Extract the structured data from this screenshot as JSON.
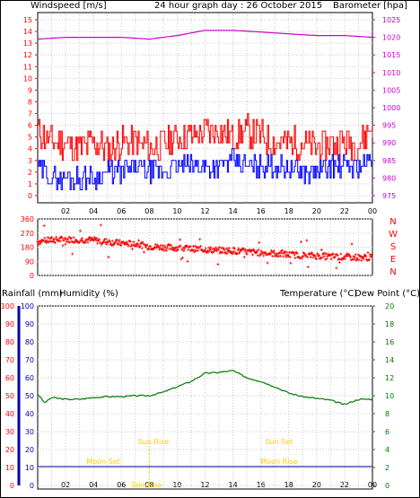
{
  "header": {
    "wind_label": "Windspeed [m/s]",
    "title": "24 hour graph day : 26 October 2015",
    "baro_label": "Barometer [hpa]"
  },
  "colors": {
    "gust": "#ff0000",
    "wind": "#0000ff",
    "baro": "#cc00cc",
    "dir": "#ff0000",
    "temp": "#007700",
    "rain": "#ff0000",
    "humidity": "#0000aa",
    "dew": "#ff0000",
    "sun": "#ffcc00",
    "grid": "#c8c8c8"
  },
  "x_ticks": [
    "02",
    "04",
    "06",
    "08",
    "10",
    "12",
    "14",
    "16",
    "18",
    "20",
    "22",
    "00"
  ],
  "chart_data": [
    {
      "type": "line",
      "id": "wind_baro",
      "xlabel": "",
      "y_left": {
        "label": "Windspeed [m/s]",
        "range": [
          0,
          15
        ],
        "ticks": [
          0,
          1,
          2,
          3,
          4,
          5,
          6,
          7,
          8,
          9,
          10,
          11,
          12,
          13,
          14,
          15
        ]
      },
      "y_right": {
        "label": "Barometer [hpa]",
        "range": [
          970,
          1030
        ],
        "ticks": [
          975,
          980,
          985,
          990,
          995,
          1000,
          1005,
          1010,
          1015,
          1020,
          1025
        ]
      },
      "series": [
        {
          "axis": "left",
          "hours": [
            0,
            1,
            2,
            3,
            4,
            5,
            6,
            7,
            8,
            9,
            10,
            11,
            12,
            13,
            14,
            15,
            16,
            17,
            18,
            19,
            20,
            21,
            22,
            23,
            24
          ],
          "values": [
            5.5,
            4.5,
            4.5,
            4.0,
            4.5,
            4.0,
            4.5,
            4.5,
            4.0,
            4.5,
            5.0,
            5.0,
            5.5,
            5.5,
            5.0,
            5.5,
            5.0,
            4.5,
            4.5,
            4.5,
            4.0,
            4.5,
            4.5,
            4.5,
            6.0
          ]
        },
        {
          "axis": "left",
          "hours": [
            0,
            1,
            2,
            3,
            4,
            5,
            6,
            7,
            8,
            9,
            10,
            11,
            12,
            13,
            14,
            15,
            16,
            17,
            18,
            19,
            20,
            21,
            22,
            23,
            24
          ],
          "values": [
            2.5,
            1.5,
            1.5,
            1.5,
            1.5,
            2.0,
            2.0,
            2.5,
            2.0,
            2.0,
            2.5,
            2.5,
            2.5,
            2.5,
            3.0,
            2.5,
            2.5,
            2.5,
            2.5,
            2.0,
            2.0,
            2.5,
            2.5,
            2.5,
            3.0
          ]
        },
        {
          "axis": "right",
          "hours": [
            0,
            2,
            4,
            6,
            8,
            10,
            12,
            14,
            16,
            18,
            20,
            22,
            24
          ],
          "values": [
            1019.5,
            1020.0,
            1020.0,
            1020.0,
            1019.5,
            1020.5,
            1022.0,
            1022.0,
            1021.5,
            1021.0,
            1020.5,
            1020.5,
            1020.0
          ]
        }
      ]
    },
    {
      "type": "scatter",
      "id": "wind_direction",
      "y_left": {
        "label": "",
        "range": [
          0,
          360
        ],
        "ticks": [
          0,
          90,
          180,
          270,
          360
        ]
      },
      "y_right": {
        "label": "",
        "ticks_text": [
          "N",
          "W",
          "S",
          "E",
          "N"
        ]
      },
      "series": [
        {
          "hours": [
            0,
            1,
            2,
            3,
            4,
            5,
            6,
            7,
            8,
            9,
            10,
            11,
            12,
            13,
            14,
            15,
            16,
            17,
            18,
            19,
            20,
            21,
            22,
            23,
            24
          ],
          "values": [
            215,
            225,
            230,
            228,
            225,
            215,
            205,
            200,
            185,
            180,
            175,
            170,
            165,
            160,
            158,
            150,
            145,
            140,
            132,
            128,
            125,
            120,
            118,
            115,
            115
          ]
        }
      ]
    },
    {
      "type": "line",
      "id": "temp_humidity",
      "y_left": {
        "label": "Rainfall (mm)  Humidity (%)",
        "range": [
          0,
          100
        ],
        "ticks": [
          0,
          10,
          20,
          30,
          40,
          50,
          60,
          70,
          80,
          90,
          100
        ]
      },
      "y_right": {
        "label": "Temperature (°C)Dew Point (°C)",
        "range": [
          0,
          20
        ],
        "ticks": [
          0,
          2,
          4,
          6,
          8,
          10,
          12,
          14,
          16,
          18,
          20
        ]
      },
      "series": [
        {
          "name": "Temperature (°C)",
          "axis": "right",
          "hours": [
            0,
            0.5,
            1,
            2,
            3,
            4,
            5,
            6,
            7,
            8,
            9,
            10,
            11,
            12,
            13,
            14,
            15,
            16,
            17,
            18,
            19,
            20,
            21,
            22,
            23,
            24
          ],
          "values": [
            10.2,
            9.2,
            9.8,
            9.6,
            9.6,
            9.8,
            9.9,
            9.9,
            10.0,
            10.0,
            10.4,
            11.0,
            11.6,
            12.5,
            12.6,
            12.8,
            12.0,
            11.6,
            11.0,
            10.3,
            9.9,
            9.7,
            9.5,
            9.0,
            9.6,
            9.6
          ]
        },
        {
          "name": "Humidity (%)",
          "axis": "left",
          "hours": [
            0,
            24
          ],
          "values": [
            10.5,
            10.5
          ]
        }
      ],
      "annotations": [
        {
          "text": "Sun Rise",
          "hour": 8.3
        },
        {
          "text": "Sun Set",
          "hour": 17.3
        },
        {
          "text": "Moon Set",
          "hour": 4.7
        },
        {
          "text": "Sun Noo",
          "hour": 7.8
        },
        {
          "text": "Moon Rise",
          "hour": 17.3
        }
      ]
    }
  ],
  "panel3_header": {
    "rain_label": "Rainfall (mm)",
    "hum_label": "Humidity (%)",
    "temp_label": "Temperature (°C)",
    "dew_label": "Dew Point (°C)"
  }
}
